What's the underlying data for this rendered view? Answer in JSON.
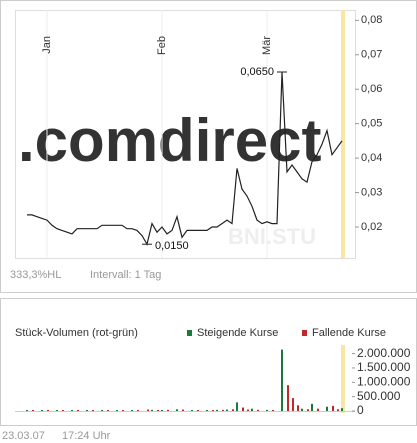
{
  "chart_data": [
    {
      "type": "line",
      "watermark": ".comdirect",
      "symbol": "BNI.STU",
      "range_note": "333,3%HL",
      "interval": "Intervall: 1 Tag",
      "categories": [
        null,
        null,
        null,
        null,
        "Jan",
        null,
        null,
        null,
        null,
        null,
        null,
        null,
        null,
        null,
        null,
        null,
        null,
        null,
        null,
        null,
        null,
        null,
        null,
        null,
        null,
        null,
        null,
        "Feb",
        null,
        null,
        null,
        null,
        null,
        null,
        null,
        null,
        null,
        null,
        null,
        null,
        null,
        null,
        null,
        null,
        null,
        null,
        null,
        null,
        "Mär",
        null,
        null,
        null,
        null,
        null,
        null,
        null,
        null,
        null,
        null,
        null,
        null,
        null,
        null,
        null
      ],
      "values": [
        0.0235,
        0.0235,
        0.023,
        0.0225,
        0.022,
        0.0205,
        0.0195,
        0.019,
        0.0185,
        0.018,
        0.0195,
        0.0195,
        0.0195,
        0.0195,
        0.0195,
        0.0205,
        0.0205,
        0.0205,
        0.0205,
        0.0205,
        0.0195,
        0.0195,
        0.019,
        0.0175,
        0.015,
        0.021,
        0.0185,
        0.02,
        0.018,
        0.019,
        0.023,
        0.017,
        0.019,
        0.019,
        0.019,
        0.019,
        0.019,
        0.02,
        0.02,
        0.021,
        0.022,
        0.021,
        0.037,
        0.031,
        0.029,
        0.026,
        0.022,
        0.021,
        0.0215,
        0.021,
        0.021,
        0.065,
        0.036,
        0.038,
        0.036,
        0.034,
        0.033,
        0.039,
        0.041,
        0.044,
        0.048,
        0.041,
        0.043,
        0.045
      ],
      "value_labels": [
        null,
        null,
        null,
        null,
        null,
        null,
        null,
        null,
        null,
        null,
        null,
        null,
        null,
        null,
        null,
        null,
        null,
        null,
        null,
        null,
        null,
        null,
        null,
        null,
        "0,0150",
        null,
        null,
        null,
        null,
        null,
        null,
        null,
        null,
        null,
        null,
        null,
        null,
        null,
        null,
        null,
        null,
        null,
        null,
        null,
        null,
        null,
        null,
        null,
        null,
        null,
        null,
        "0,0650",
        null,
        null,
        null,
        null,
        null,
        null,
        null,
        null,
        null,
        null,
        null,
        null
      ],
      "color": "#222222",
      "ylim": [
        0.011,
        0.083
      ],
      "yticks": [
        {
          "value": 0.02,
          "label": "0,02"
        },
        {
          "value": 0.03,
          "label": "0,03"
        },
        {
          "value": 0.04,
          "label": "0,04"
        },
        {
          "value": 0.05,
          "label": "0,05"
        },
        {
          "value": 0.06,
          "label": "0,06"
        },
        {
          "value": 0.07,
          "label": "0,07"
        },
        {
          "value": 0.08,
          "label": "0,08"
        }
      ]
    },
    {
      "type": "bar",
      "title": "Stück-Volumen (rot-grün)",
      "series": [
        {
          "name": "Steigende Kurse",
          "color": "#1a7a3a",
          "values": [
            20000,
            null,
            null,
            25000,
            null,
            null,
            15000,
            null,
            null,
            20000,
            null,
            null,
            30000,
            null,
            null,
            20000,
            null,
            null,
            25000,
            null,
            null,
            20000,
            null,
            null,
            null,
            40000,
            null,
            30000,
            null,
            null,
            60000,
            null,
            null,
            25000,
            null,
            null,
            30000,
            null,
            40000,
            null,
            50000,
            null,
            300000,
            null,
            null,
            80000,
            null,
            null,
            40000,
            null,
            null,
            2140000,
            null,
            null,
            null,
            80000,
            null,
            250000,
            null,
            null,
            150000,
            null,
            null,
            100000
          ]
        },
        {
          "name": "Fallende Kurse",
          "color": "#c0282a",
          "values": [
            null,
            15000,
            null,
            null,
            20000,
            null,
            null,
            15000,
            null,
            null,
            20000,
            null,
            null,
            25000,
            null,
            null,
            15000,
            null,
            null,
            20000,
            null,
            null,
            20000,
            null,
            50000,
            null,
            30000,
            null,
            40000,
            null,
            null,
            50000,
            null,
            null,
            20000,
            null,
            null,
            30000,
            null,
            40000,
            null,
            60000,
            null,
            120000,
            50000,
            null,
            40000,
            null,
            null,
            30000,
            null,
            null,
            900000,
            450000,
            200000,
            null,
            60000,
            null,
            80000,
            null,
            null,
            180000,
            60000,
            null
          ]
        }
      ],
      "ylim": [
        0,
        2300000
      ],
      "yticks": [
        0,
        {
          "value": 500000,
          "label": "500.000"
        },
        {
          "value": 1000000,
          "label": "1.000.000"
        },
        {
          "value": 1500000,
          "label": "1.500.000"
        },
        {
          "value": 2000000,
          "label": "2.000.000"
        }
      ]
    }
  ],
  "footer": {
    "date": "23.03.07",
    "time": "17:24 Uhr"
  }
}
